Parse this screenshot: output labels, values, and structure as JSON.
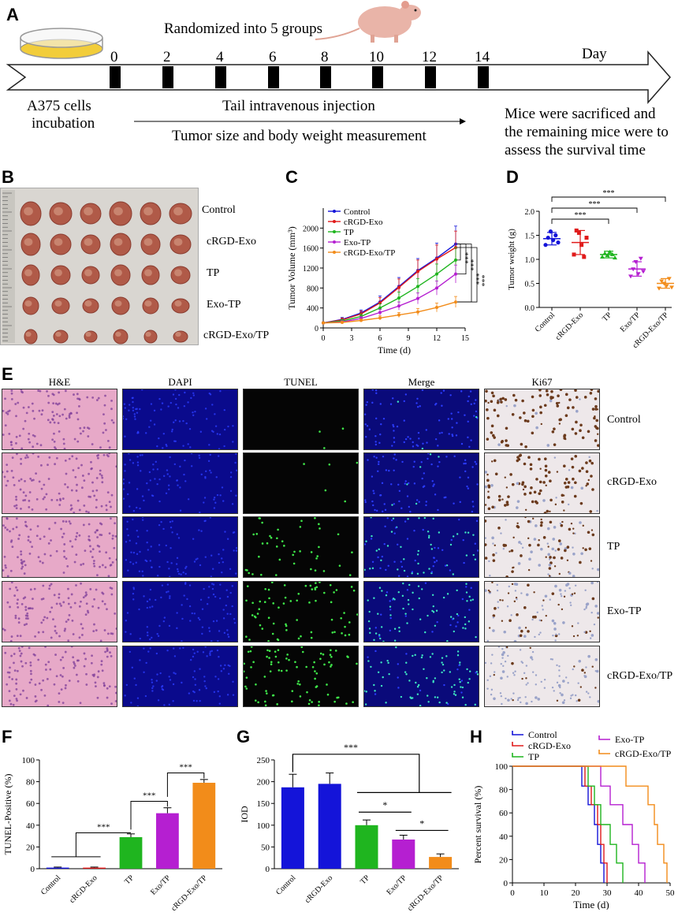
{
  "panels": {
    "a": "A",
    "b": "B",
    "c": "C",
    "d": "D",
    "e": "E",
    "f": "F",
    "g": "G",
    "h": "H"
  },
  "timeline": {
    "randomized": "Randomized into 5 groups",
    "day": "Day",
    "days": [
      "0",
      "2",
      "4",
      "6",
      "8",
      "10",
      "12",
      "14"
    ],
    "cells": "A375 cells",
    "incubation": "incubation",
    "injection": "Tail intravenous injection",
    "measurement": "Tumor size and body weight measurement",
    "sacrifice": [
      "Mice were sacrificed and",
      "the remaining mice were to",
      "assess the survival time"
    ],
    "colors": {
      "dish_liquid": "#f2cd3a",
      "mouse": "#e9b4a8"
    }
  },
  "groups": [
    "Control",
    "cRGD-Exo",
    "TP",
    "Exo-TP",
    "cRGD-Exo/TP"
  ],
  "panel_e": {
    "columns": [
      "H&E",
      "DAPI",
      "TUNEL",
      "Merge",
      "Ki67"
    ],
    "rows": [
      "Control",
      "cRGD-Exo",
      "TP",
      "Exo-TP",
      "cRGD-Exo/TP"
    ]
  },
  "chart_data": [
    {
      "id": "C",
      "type": "line",
      "xlabel": "Time (d)",
      "ylabel": "Tumor Volume (mm³)",
      "x": [
        0,
        2,
        4,
        6,
        8,
        10,
        12,
        14
      ],
      "xticks": [
        "0",
        "3",
        "6",
        "9",
        "12",
        "15"
      ],
      "yticks": [
        "0",
        "400",
        "800",
        "1200",
        "1600",
        "2000"
      ],
      "xlim": [
        0,
        15
      ],
      "ylim": [
        0,
        2400
      ],
      "series": [
        {
          "name": "Control",
          "color": "#1414d9",
          "values": [
            100,
            170,
            300,
            520,
            830,
            1150,
            1400,
            1680
          ],
          "err": [
            20,
            40,
            60,
            120,
            180,
            240,
            300,
            360
          ]
        },
        {
          "name": "cRGD-Exo",
          "color": "#e01b1b",
          "values": [
            100,
            160,
            280,
            500,
            810,
            1130,
            1380,
            1610
          ],
          "err": [
            20,
            40,
            60,
            110,
            170,
            230,
            280,
            330
          ]
        },
        {
          "name": "TP",
          "color": "#1fb51f",
          "values": [
            100,
            140,
            230,
            400,
            600,
            830,
            1080,
            1360
          ],
          "err": [
            20,
            30,
            50,
            80,
            120,
            160,
            200,
            250
          ]
        },
        {
          "name": "Exo-TP",
          "color": "#b51fd1",
          "values": [
            100,
            120,
            190,
            310,
            440,
            590,
            800,
            1080
          ],
          "err": [
            15,
            25,
            40,
            60,
            80,
            110,
            140,
            180
          ]
        },
        {
          "name": "cRGD-Exo/TP",
          "color": "#f28c1a",
          "values": [
            100,
            110,
            150,
            200,
            260,
            320,
            410,
            520
          ],
          "err": [
            15,
            20,
            30,
            40,
            50,
            70,
            90,
            110
          ]
        }
      ],
      "stars": [
        "***",
        "***",
        "***",
        "***"
      ]
    },
    {
      "id": "D",
      "type": "scatter",
      "ylabel": "Tumor weight (g)",
      "categories": [
        "Control",
        "cRGD-Exo",
        "TP",
        "Exo/TP",
        "cRGD-Exo/TP"
      ],
      "yticks": [
        "0.0",
        "0.5",
        "1.0",
        "1.5",
        "2.0"
      ],
      "ylim": [
        0,
        2.0
      ],
      "colors": [
        "#1414d9",
        "#e01b1b",
        "#1fb51f",
        "#b51fd1",
        "#f28c1a"
      ],
      "means": [
        1.43,
        1.35,
        1.1,
        0.8,
        0.5
      ],
      "sd": [
        0.13,
        0.25,
        0.07,
        0.15,
        0.1
      ],
      "points": [
        [
          1.3,
          1.45,
          1.58,
          1.4,
          1.5,
          1.35
        ],
        [
          1.1,
          1.6,
          1.55,
          1.3,
          1.05,
          1.45
        ],
        [
          1.05,
          1.12,
          1.08,
          1.15,
          1.1,
          1.03
        ],
        [
          0.65,
          0.8,
          0.95,
          0.7,
          1.02,
          0.75
        ],
        [
          0.4,
          0.55,
          0.5,
          0.45,
          0.6,
          0.42
        ]
      ],
      "stars": [
        "***",
        "***",
        "***"
      ]
    },
    {
      "id": "F",
      "type": "bar",
      "ylabel": "TUNEL-Positive (%)",
      "categories": [
        "Control",
        "cRGD-Exo",
        "TP",
        "Exo/TP",
        "cRGD-Exo/TP"
      ],
      "values": [
        1,
        1,
        29,
        51,
        79
      ],
      "err": [
        0.5,
        0.5,
        3,
        5,
        3
      ],
      "colors": [
        "#1414d9",
        "#e01b1b",
        "#1fb51f",
        "#b51fd1",
        "#f28c1a"
      ],
      "yticks": [
        "0",
        "20",
        "40",
        "60",
        "80",
        "100"
      ],
      "ylim": [
        0,
        100
      ],
      "stars": [
        "***",
        "***",
        "***"
      ]
    },
    {
      "id": "G",
      "type": "bar",
      "ylabel": "IOD",
      "categories": [
        "Control",
        "cRGD-Exo",
        "TP",
        "Exo/TP",
        "cRGD-Exo/TP"
      ],
      "values": [
        187,
        195,
        100,
        67,
        27
      ],
      "err": [
        30,
        25,
        12,
        10,
        7
      ],
      "colors": [
        "#1414d9",
        "#1414d9",
        "#1fb51f",
        "#b51fd1",
        "#f28c1a"
      ],
      "yticks": [
        "0",
        "50",
        "100",
        "150",
        "200",
        "250"
      ],
      "ylim": [
        0,
        250
      ],
      "stars": [
        "***",
        "*",
        "*"
      ]
    },
    {
      "id": "H",
      "type": "line",
      "xlabel": "Time (d)",
      "ylabel": "Percent survival (%)",
      "xticks": [
        "0",
        "10",
        "20",
        "30",
        "40",
        "50"
      ],
      "yticks": [
        "0",
        "20",
        "40",
        "60",
        "80",
        "100"
      ],
      "xlim": [
        0,
        50
      ],
      "ylim": [
        0,
        100
      ],
      "series": [
        {
          "name": "Control",
          "color": "#1414d9",
          "steps": [
            [
              0,
              100
            ],
            [
              22,
              100
            ],
            [
              22,
              83
            ],
            [
              24,
              83
            ],
            [
              24,
              67
            ],
            [
              26,
              67
            ],
            [
              26,
              50
            ],
            [
              27,
              50
            ],
            [
              27,
              33
            ],
            [
              28,
              33
            ],
            [
              28,
              17
            ],
            [
              29,
              17
            ],
            [
              29,
              0
            ]
          ]
        },
        {
          "name": "cRGD-Exo",
          "color": "#e01b1b",
          "steps": [
            [
              0,
              100
            ],
            [
              23,
              100
            ],
            [
              23,
              83
            ],
            [
              25,
              83
            ],
            [
              25,
              67
            ],
            [
              27,
              67
            ],
            [
              27,
              50
            ],
            [
              28,
              50
            ],
            [
              28,
              33
            ],
            [
              29,
              33
            ],
            [
              29,
              17
            ],
            [
              30,
              17
            ],
            [
              30,
              0
            ]
          ]
        },
        {
          "name": "TP",
          "color": "#1fb51f",
          "steps": [
            [
              0,
              100
            ],
            [
              24,
              100
            ],
            [
              24,
              83
            ],
            [
              26,
              83
            ],
            [
              26,
              67
            ],
            [
              28,
              67
            ],
            [
              28,
              50
            ],
            [
              31,
              50
            ],
            [
              31,
              33
            ],
            [
              33,
              33
            ],
            [
              33,
              17
            ],
            [
              35,
              17
            ],
            [
              35,
              0
            ]
          ]
        },
        {
          "name": "Exo-TP",
          "color": "#b51fd1",
          "steps": [
            [
              0,
              100
            ],
            [
              28,
              100
            ],
            [
              28,
              83
            ],
            [
              31,
              83
            ],
            [
              31,
              67
            ],
            [
              35,
              67
            ],
            [
              35,
              50
            ],
            [
              38,
              50
            ],
            [
              38,
              33
            ],
            [
              40,
              33
            ],
            [
              40,
              17
            ],
            [
              42,
              17
            ],
            [
              42,
              0
            ]
          ]
        },
        {
          "name": "cRGD-Exo/TP",
          "color": "#f28c1a",
          "steps": [
            [
              0,
              100
            ],
            [
              36,
              100
            ],
            [
              36,
              83
            ],
            [
              43,
              83
            ],
            [
              43,
              67
            ],
            [
              45,
              67
            ],
            [
              45,
              50
            ],
            [
              46,
              50
            ],
            [
              46,
              33
            ],
            [
              48,
              33
            ],
            [
              48,
              17
            ],
            [
              49,
              17
            ],
            [
              49,
              0
            ]
          ]
        }
      ]
    }
  ]
}
